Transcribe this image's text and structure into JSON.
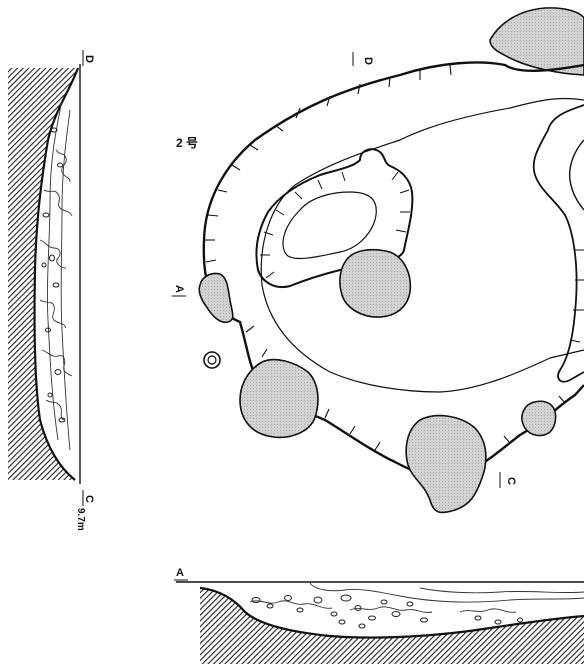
{
  "plan": {
    "title": "2 号"
  },
  "section_labels": {
    "d_top": "D",
    "d_side": "D",
    "c_side": "C",
    "c_plan": "C",
    "a_plan": "A",
    "a_section": "A"
  },
  "elevation": "9.7m"
}
